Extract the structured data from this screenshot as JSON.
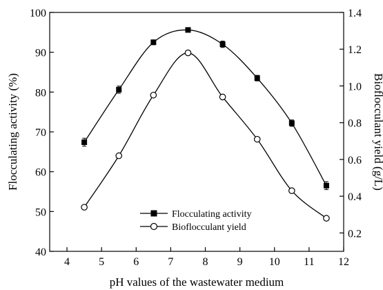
{
  "chart_data": {
    "type": "line",
    "xlabel": "pH values of the wastewater medium",
    "ylabel": "Flocculating activity (%)",
    "y2label": "Bioflocculant yield (g/L)",
    "xlim": [
      3.5,
      12
    ],
    "ylim": [
      40,
      100
    ],
    "y2lim": [
      0.1,
      1.4
    ],
    "xticks": [
      "4",
      "5",
      "6",
      "7",
      "8",
      "9",
      "10",
      "11",
      "12"
    ],
    "yticks": [
      "40",
      "50",
      "60",
      "70",
      "80",
      "90",
      "100"
    ],
    "y2ticks": [
      "0.2",
      "0.4",
      "0.6",
      "0.8",
      "1.0",
      "1.2",
      "1.4"
    ],
    "x": [
      4.5,
      5.5,
      6.5,
      7.5,
      8.5,
      9.5,
      10.5,
      11.5
    ],
    "legend_position": "bottom-center",
    "grid": false,
    "series": [
      {
        "name": "Flocculating activity",
        "axis": "left",
        "marker": "filled-square",
        "values": [
          67.4,
          80.6,
          92.5,
          95.6,
          92.0,
          83.5,
          72.2,
          56.5
        ],
        "errors": [
          1.0,
          0.9,
          0.6,
          0.5,
          0.8,
          0.7,
          0.8,
          1.0
        ]
      },
      {
        "name": "Bioflocculant yield",
        "axis": "right",
        "marker": "open-circle",
        "values": [
          0.34,
          0.62,
          0.95,
          1.18,
          0.94,
          0.71,
          0.43,
          0.28
        ],
        "errors": [
          0.01,
          0.01,
          0.01,
          0.01,
          0.01,
          0.01,
          0.01,
          0.01
        ]
      }
    ]
  }
}
